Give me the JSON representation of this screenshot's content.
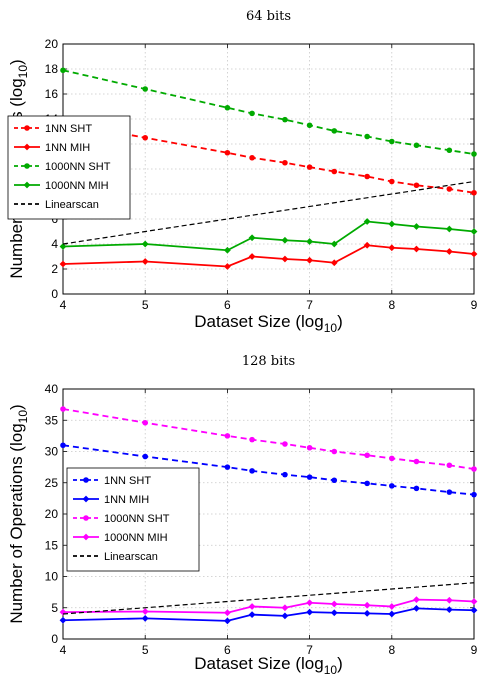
{
  "chart_data": [
    {
      "type": "line",
      "title": "64 bits",
      "xlabel": "Dataset Size (log",
      "xlabel_sub": "10",
      "xlabel_close": ")",
      "ylabel": "Number of Operations (log",
      "ylabel_sub": "10",
      "ylabel_close": ")",
      "xlim": [
        4,
        9
      ],
      "ylim": [
        0,
        20
      ],
      "xticks": [
        4,
        5,
        6,
        7,
        8,
        9
      ],
      "yticks": [
        0,
        2,
        4,
        6,
        8,
        10,
        12,
        14,
        16,
        18,
        20
      ],
      "grid": true,
      "legend_position": "left",
      "series": [
        {
          "name": "1NN SHT",
          "color": "#ff0000",
          "style": "dashed",
          "marker": "dot",
          "x": [
            4,
            5,
            6,
            6.3,
            6.7,
            7,
            7.3,
            7.7,
            8,
            8.3,
            8.7,
            9
          ],
          "y": [
            13.7,
            12.5,
            11.3,
            10.9,
            10.5,
            10.15,
            9.8,
            9.4,
            9.0,
            8.7,
            8.4,
            8.1
          ]
        },
        {
          "name": "1NN MIH",
          "color": "#ff0000",
          "style": "solid",
          "marker": "diamond",
          "x": [
            4,
            5,
            6,
            6.3,
            6.7,
            7,
            7.3,
            7.7,
            8,
            8.3,
            8.7,
            9
          ],
          "y": [
            2.4,
            2.6,
            2.2,
            3.0,
            2.8,
            2.7,
            2.5,
            3.9,
            3.7,
            3.6,
            3.4,
            3.2
          ]
        },
        {
          "name": "1000NN SHT",
          "color": "#00aa00",
          "style": "dashed",
          "marker": "dot",
          "x": [
            4,
            5,
            6,
            6.3,
            6.7,
            7,
            7.3,
            7.7,
            8,
            8.3,
            8.7,
            9
          ],
          "y": [
            17.9,
            16.4,
            14.9,
            14.45,
            13.95,
            13.5,
            13.05,
            12.6,
            12.2,
            11.9,
            11.5,
            11.2
          ]
        },
        {
          "name": "1000NN MIH",
          "color": "#00aa00",
          "style": "solid",
          "marker": "diamond",
          "x": [
            4,
            5,
            6,
            6.3,
            6.7,
            7,
            7.3,
            7.7,
            8,
            8.3,
            8.7,
            9
          ],
          "y": [
            3.8,
            4.0,
            3.5,
            4.5,
            4.3,
            4.2,
            4.0,
            5.8,
            5.6,
            5.4,
            5.2,
            5.0
          ]
        },
        {
          "name": "Linearscan",
          "color": "#000000",
          "style": "dashed",
          "marker": "none",
          "x": [
            4,
            9
          ],
          "y": [
            4,
            9
          ]
        }
      ]
    },
    {
      "type": "line",
      "title": "128 bits",
      "xlabel": "Dataset Size (log",
      "xlabel_sub": "10",
      "xlabel_close": ")",
      "ylabel": "Number of Operations (log",
      "ylabel_sub": "10",
      "ylabel_close": ")",
      "xlim": [
        4,
        9
      ],
      "ylim": [
        0,
        40
      ],
      "xticks": [
        4,
        5,
        6,
        7,
        8,
        9
      ],
      "yticks": [
        0,
        5,
        10,
        15,
        20,
        25,
        30,
        35,
        40
      ],
      "grid": true,
      "legend_position": "center-left",
      "series": [
        {
          "name": "1NN SHT",
          "color": "#0000ff",
          "style": "dashed",
          "marker": "dot",
          "x": [
            4,
            5,
            6,
            6.3,
            6.7,
            7,
            7.3,
            7.7,
            8,
            8.3,
            8.7,
            9
          ],
          "y": [
            31.0,
            29.2,
            27.5,
            26.9,
            26.3,
            25.9,
            25.4,
            24.9,
            24.5,
            24.1,
            23.5,
            23.1
          ]
        },
        {
          "name": "1NN MIH",
          "color": "#0000ff",
          "style": "solid",
          "marker": "diamond",
          "x": [
            4,
            5,
            6,
            6.3,
            6.7,
            7,
            7.3,
            7.7,
            8,
            8.3,
            8.7,
            9
          ],
          "y": [
            3.0,
            3.3,
            2.9,
            3.9,
            3.7,
            4.3,
            4.2,
            4.1,
            4.0,
            4.9,
            4.7,
            4.6
          ]
        },
        {
          "name": "1000NN SHT",
          "color": "#ff00ff",
          "style": "dashed",
          "marker": "dot",
          "x": [
            4,
            5,
            6,
            6.3,
            6.7,
            7,
            7.3,
            7.7,
            8,
            8.3,
            8.7,
            9
          ],
          "y": [
            36.8,
            34.6,
            32.5,
            31.9,
            31.2,
            30.6,
            30.0,
            29.4,
            28.9,
            28.4,
            27.8,
            27.2
          ]
        },
        {
          "name": "1000NN MIH",
          "color": "#ff00ff",
          "style": "solid",
          "marker": "diamond",
          "x": [
            4,
            5,
            6,
            6.3,
            6.7,
            7,
            7.3,
            7.7,
            8,
            8.3,
            8.7,
            9
          ],
          "y": [
            4.3,
            4.4,
            4.2,
            5.2,
            5.0,
            5.8,
            5.6,
            5.4,
            5.2,
            6.3,
            6.2,
            6.0
          ]
        },
        {
          "name": "Linearscan",
          "color": "#000000",
          "style": "dashed",
          "marker": "none",
          "x": [
            4,
            9
          ],
          "y": [
            4,
            9
          ]
        }
      ]
    }
  ]
}
